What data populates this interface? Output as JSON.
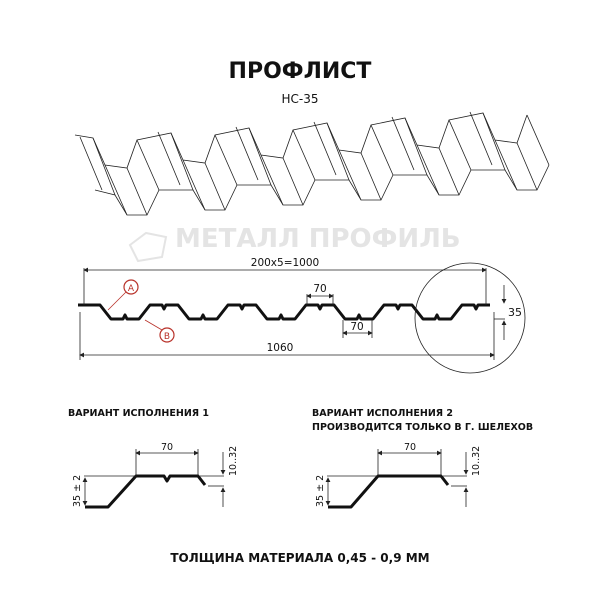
{
  "title": "ПРОФЛИСТ",
  "subtitle": "НС-35",
  "watermark": "МЕТАЛЛ ПРОФИЛЬ",
  "main_profile": {
    "dim_pitch": "200x5=1000",
    "dim_total": "1060",
    "dim_top": "70",
    "dim_bottom": "70",
    "dim_height": "35",
    "marker_a": "A",
    "marker_b": "B"
  },
  "variant1": {
    "label": "ВАРИАНТ ИСПОЛНЕНИЯ 1",
    "dim_width": "70",
    "dim_edge": "10..32",
    "dim_height": "35 ± 2"
  },
  "variant2": {
    "label": "ВАРИАНТ ИСПОЛНЕНИЯ 2",
    "note": "ПРОИЗВОДИТСЯ ТОЛЬКО В Г. ШЕЛЕХОВ",
    "dim_width": "70",
    "dim_edge": "10..32",
    "dim_height": "35 ± 2"
  },
  "footer": "ТОЛЩИНА МАТЕРИАЛА 0,45 - 0,9 ММ",
  "colors": {
    "marker": "#b8322a",
    "line": "#111111",
    "watermark": "#e4e4e4"
  }
}
